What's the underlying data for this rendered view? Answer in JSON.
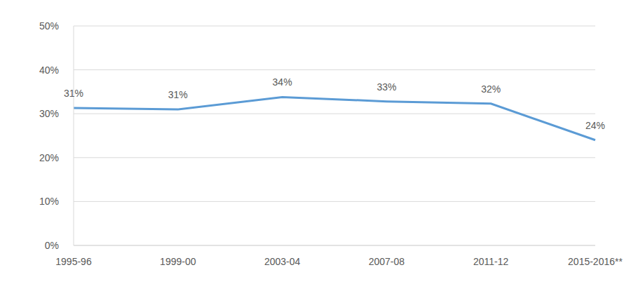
{
  "chart_data": {
    "type": "line",
    "categories": [
      "1995-96",
      "1999-00",
      "2003-04",
      "2007-08",
      "2011-12",
      "2015-2016**"
    ],
    "values": [
      31.3,
      31.0,
      33.8,
      32.8,
      32.3,
      24.0
    ],
    "value_labels": [
      "31%",
      "31%",
      "34%",
      "33%",
      "32%",
      "24%"
    ],
    "color": "#5b9bd5",
    "ylim": [
      0,
      50
    ],
    "yticks": [
      {
        "value": 0,
        "label": "0%"
      },
      {
        "value": 10,
        "label": "10%"
      },
      {
        "value": 20,
        "label": "20%"
      },
      {
        "value": 30,
        "label": "30%"
      },
      {
        "value": 40,
        "label": "40%"
      },
      {
        "value": 50,
        "label": "50%"
      }
    ],
    "grid": true,
    "data_labels": true
  }
}
